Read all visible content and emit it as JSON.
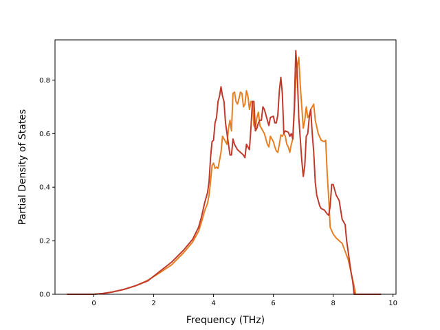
{
  "chart_data": {
    "type": "line",
    "title": "",
    "xlabel": "Frequency (THz)",
    "ylabel": "Partial Density of States",
    "xlim": [
      -1.3,
      10.1
    ],
    "ylim": [
      0.0,
      0.95
    ],
    "xticks": [
      0,
      2,
      4,
      6,
      8,
      10
    ],
    "xtick_labels": [
      "0",
      "2",
      "4",
      "6",
      "8",
      "10"
    ],
    "yticks": [
      0.0,
      0.2,
      0.4,
      0.6,
      0.8
    ],
    "ytick_labels": [
      "0.0",
      "0.2",
      "0.4",
      "0.6",
      "0.8"
    ],
    "grid": false,
    "legend": "none",
    "series": [
      {
        "color": "#e67e22",
        "points": [
          [
            -0.9,
            0.0
          ],
          [
            0.0,
            0.0
          ],
          [
            0.3,
            0.003
          ],
          [
            0.6,
            0.008
          ],
          [
            1.0,
            0.018
          ],
          [
            1.4,
            0.032
          ],
          [
            1.8,
            0.052
          ],
          [
            2.2,
            0.08
          ],
          [
            2.6,
            0.11
          ],
          [
            3.0,
            0.155
          ],
          [
            3.3,
            0.195
          ],
          [
            3.5,
            0.235
          ],
          [
            3.6,
            0.27
          ],
          [
            3.7,
            0.31
          ],
          [
            3.8,
            0.34
          ],
          [
            3.85,
            0.37
          ],
          [
            3.9,
            0.42
          ],
          [
            3.95,
            0.48
          ],
          [
            4.0,
            0.49
          ],
          [
            4.05,
            0.47
          ],
          [
            4.1,
            0.475
          ],
          [
            4.15,
            0.47
          ],
          [
            4.2,
            0.5
          ],
          [
            4.25,
            0.53
          ],
          [
            4.3,
            0.59
          ],
          [
            4.35,
            0.58
          ],
          [
            4.4,
            0.57
          ],
          [
            4.45,
            0.56
          ],
          [
            4.5,
            0.62
          ],
          [
            4.55,
            0.65
          ],
          [
            4.6,
            0.61
          ],
          [
            4.65,
            0.75
          ],
          [
            4.7,
            0.755
          ],
          [
            4.75,
            0.72
          ],
          [
            4.8,
            0.71
          ],
          [
            4.85,
            0.73
          ],
          [
            4.9,
            0.755
          ],
          [
            4.95,
            0.75
          ],
          [
            5.0,
            0.7
          ],
          [
            5.05,
            0.71
          ],
          [
            5.1,
            0.76
          ],
          [
            5.15,
            0.74
          ],
          [
            5.2,
            0.69
          ],
          [
            5.25,
            0.72
          ],
          [
            5.3,
            0.72
          ],
          [
            5.35,
            0.63
          ],
          [
            5.4,
            0.62
          ],
          [
            5.45,
            0.66
          ],
          [
            5.5,
            0.68
          ],
          [
            5.55,
            0.63
          ],
          [
            5.6,
            0.62
          ],
          [
            5.7,
            0.6
          ],
          [
            5.8,
            0.56
          ],
          [
            5.85,
            0.55
          ],
          [
            5.9,
            0.59
          ],
          [
            6.0,
            0.57
          ],
          [
            6.05,
            0.55
          ],
          [
            6.1,
            0.535
          ],
          [
            6.15,
            0.53
          ],
          [
            6.2,
            0.56
          ],
          [
            6.25,
            0.595
          ],
          [
            6.3,
            0.59
          ],
          [
            6.35,
            0.6
          ],
          [
            6.4,
            0.59
          ],
          [
            6.45,
            0.56
          ],
          [
            6.5,
            0.55
          ],
          [
            6.55,
            0.53
          ],
          [
            6.6,
            0.56
          ],
          [
            6.65,
            0.58
          ],
          [
            6.7,
            0.68
          ],
          [
            6.75,
            0.8
          ],
          [
            6.8,
            0.85
          ],
          [
            6.85,
            0.885
          ],
          [
            6.9,
            0.78
          ],
          [
            6.95,
            0.7
          ],
          [
            7.0,
            0.62
          ],
          [
            7.05,
            0.65
          ],
          [
            7.1,
            0.7
          ],
          [
            7.15,
            0.66
          ],
          [
            7.2,
            0.67
          ],
          [
            7.25,
            0.69
          ],
          [
            7.3,
            0.7
          ],
          [
            7.35,
            0.71
          ],
          [
            7.4,
            0.65
          ],
          [
            7.5,
            0.6
          ],
          [
            7.6,
            0.575
          ],
          [
            7.7,
            0.57
          ],
          [
            7.75,
            0.575
          ],
          [
            7.8,
            0.45
          ],
          [
            7.85,
            0.36
          ],
          [
            7.9,
            0.25
          ],
          [
            8.0,
            0.225
          ],
          [
            8.1,
            0.21
          ],
          [
            8.2,
            0.2
          ],
          [
            8.3,
            0.19
          ],
          [
            8.4,
            0.16
          ],
          [
            8.5,
            0.13
          ],
          [
            8.6,
            0.08
          ],
          [
            8.7,
            0.03
          ],
          [
            8.75,
            0.0
          ],
          [
            9.6,
            0.0
          ]
        ]
      },
      {
        "color": "#c0392b",
        "points": [
          [
            -0.9,
            0.0
          ],
          [
            0.0,
            0.0
          ],
          [
            0.3,
            0.003
          ],
          [
            0.6,
            0.008
          ],
          [
            1.0,
            0.018
          ],
          [
            1.4,
            0.032
          ],
          [
            1.8,
            0.05
          ],
          [
            2.2,
            0.085
          ],
          [
            2.6,
            0.12
          ],
          [
            3.0,
            0.165
          ],
          [
            3.3,
            0.205
          ],
          [
            3.5,
            0.25
          ],
          [
            3.6,
            0.29
          ],
          [
            3.7,
            0.34
          ],
          [
            3.8,
            0.38
          ],
          [
            3.85,
            0.42
          ],
          [
            3.9,
            0.51
          ],
          [
            3.95,
            0.57
          ],
          [
            4.0,
            0.575
          ],
          [
            4.05,
            0.64
          ],
          [
            4.1,
            0.66
          ],
          [
            4.15,
            0.72
          ],
          [
            4.2,
            0.74
          ],
          [
            4.25,
            0.775
          ],
          [
            4.3,
            0.74
          ],
          [
            4.35,
            0.72
          ],
          [
            4.4,
            0.64
          ],
          [
            4.45,
            0.6
          ],
          [
            4.5,
            0.56
          ],
          [
            4.55,
            0.52
          ],
          [
            4.6,
            0.52
          ],
          [
            4.65,
            0.58
          ],
          [
            4.7,
            0.56
          ],
          [
            4.8,
            0.54
          ],
          [
            4.9,
            0.53
          ],
          [
            5.0,
            0.52
          ],
          [
            5.05,
            0.51
          ],
          [
            5.1,
            0.56
          ],
          [
            5.15,
            0.55
          ],
          [
            5.2,
            0.54
          ],
          [
            5.25,
            0.62
          ],
          [
            5.3,
            0.72
          ],
          [
            5.35,
            0.72
          ],
          [
            5.4,
            0.61
          ],
          [
            5.45,
            0.62
          ],
          [
            5.5,
            0.64
          ],
          [
            5.55,
            0.65
          ],
          [
            5.6,
            0.65
          ],
          [
            5.65,
            0.7
          ],
          [
            5.7,
            0.69
          ],
          [
            5.75,
            0.67
          ],
          [
            5.8,
            0.65
          ],
          [
            5.85,
            0.63
          ],
          [
            5.9,
            0.66
          ],
          [
            6.0,
            0.665
          ],
          [
            6.05,
            0.64
          ],
          [
            6.1,
            0.64
          ],
          [
            6.15,
            0.67
          ],
          [
            6.2,
            0.76
          ],
          [
            6.25,
            0.81
          ],
          [
            6.3,
            0.75
          ],
          [
            6.35,
            0.6
          ],
          [
            6.4,
            0.61
          ],
          [
            6.5,
            0.605
          ],
          [
            6.55,
            0.59
          ],
          [
            6.6,
            0.6
          ],
          [
            6.65,
            0.58
          ],
          [
            6.7,
            0.7
          ],
          [
            6.75,
            0.91
          ],
          [
            6.8,
            0.82
          ],
          [
            6.85,
            0.66
          ],
          [
            6.9,
            0.58
          ],
          [
            6.95,
            0.5
          ],
          [
            7.0,
            0.44
          ],
          [
            7.05,
            0.48
          ],
          [
            7.1,
            0.59
          ],
          [
            7.15,
            0.6
          ],
          [
            7.2,
            0.66
          ],
          [
            7.25,
            0.69
          ],
          [
            7.3,
            0.6
          ],
          [
            7.35,
            0.53
          ],
          [
            7.4,
            0.42
          ],
          [
            7.45,
            0.37
          ],
          [
            7.5,
            0.35
          ],
          [
            7.55,
            0.33
          ],
          [
            7.6,
            0.32
          ],
          [
            7.7,
            0.315
          ],
          [
            7.8,
            0.3
          ],
          [
            7.85,
            0.295
          ],
          [
            7.9,
            0.33
          ],
          [
            7.95,
            0.41
          ],
          [
            8.0,
            0.41
          ],
          [
            8.05,
            0.39
          ],
          [
            8.1,
            0.37
          ],
          [
            8.2,
            0.35
          ],
          [
            8.3,
            0.28
          ],
          [
            8.4,
            0.26
          ],
          [
            8.45,
            0.2
          ],
          [
            8.5,
            0.16
          ],
          [
            8.55,
            0.12
          ],
          [
            8.6,
            0.08
          ],
          [
            8.65,
            0.05
          ],
          [
            8.7,
            0.0
          ],
          [
            9.6,
            0.0
          ]
        ]
      }
    ]
  }
}
